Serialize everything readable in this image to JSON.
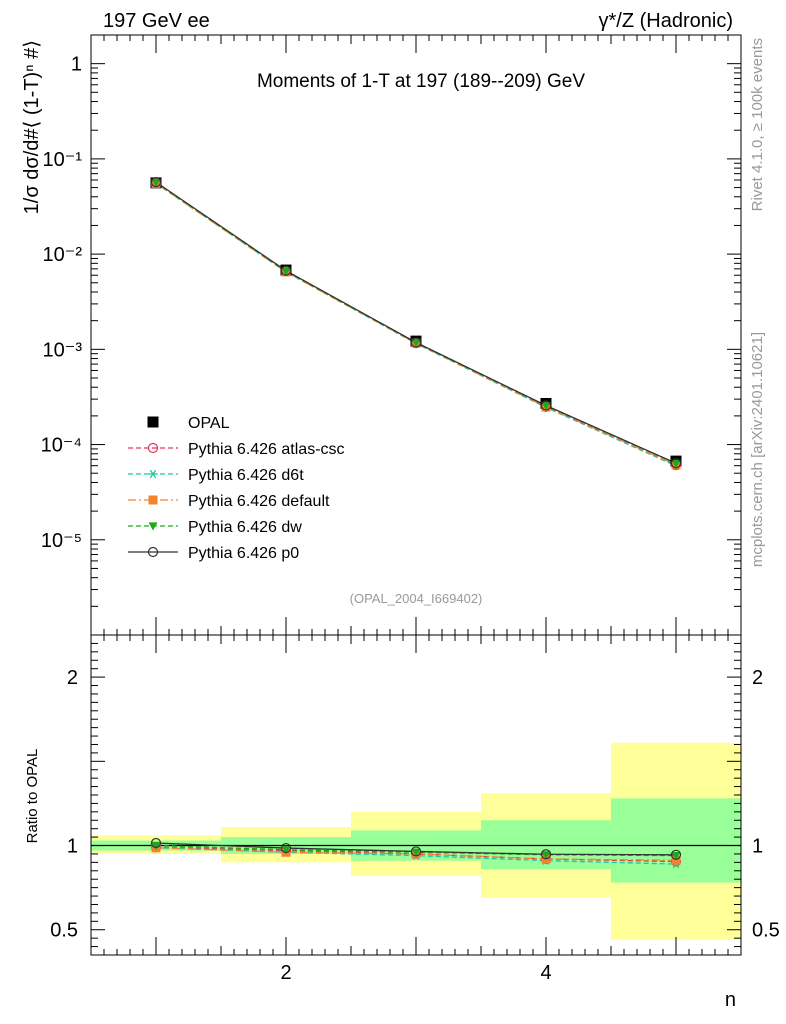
{
  "header": {
    "left": "197 GeV ee",
    "right": "γ*/Z (Hadronic)"
  },
  "side_labels": {
    "rivet": "Rivet 4.1.0, ≥ 100k events",
    "mcplots": "mcplots.cern.ch [arXiv:2401.10621]"
  },
  "chart_data": [
    {
      "panel": "main",
      "type": "line",
      "title": "Moments of 1-T at 197 (189--209) GeV",
      "ylabel": "1/σ  dσ/d#⟨ (1-T)ⁿ #⟩",
      "xlabel": "",
      "yscale": "log",
      "xlim": [
        0.5,
        5.5
      ],
      "ylim": [
        1e-06,
        2
      ],
      "ytick_labels": [
        "1",
        "10⁻¹",
        "10⁻²",
        "10⁻³",
        "10⁻⁴",
        "10⁻⁵"
      ],
      "ytick_values": [
        1,
        0.1,
        0.01,
        0.001,
        0.0001,
        1e-05
      ],
      "annotation": "(OPAL_2004_I669402)",
      "x": [
        1,
        2,
        3,
        4,
        5
      ],
      "reference": {
        "name": "OPAL",
        "values": [
          0.056,
          0.0068,
          0.00122,
          0.00027,
          6.7e-05
        ]
      },
      "series": [
        {
          "name": "Pythia 6.426 atlas-csc",
          "color": "#e8335a",
          "marker": "open-circle",
          "dash": "dashed",
          "values": [
            0.0555,
            0.0066,
            0.00116,
            0.000248,
            6.07e-05
          ]
        },
        {
          "name": "Pythia 6.426 d6t",
          "color": "#22c89c",
          "marker": "asterisk",
          "dash": "dashed",
          "values": [
            0.0553,
            0.0065,
            0.00115,
            0.000245,
            5.96e-05
          ]
        },
        {
          "name": "Pythia 6.426 default",
          "color": "#f58231",
          "marker": "filled-square",
          "dash": "dashdot",
          "values": [
            0.0553,
            0.0065,
            0.00116,
            0.000248,
            6.12e-05
          ]
        },
        {
          "name": "Pythia 6.426 dw",
          "color": "#1aaa1a",
          "marker": "filled-triangle-down",
          "dash": "dashed",
          "values": [
            0.0565,
            0.0066,
            0.00118,
            0.000256,
            6.33e-05
          ]
        },
        {
          "name": "Pythia 6.426 p0",
          "color": "#333333",
          "marker": "open-circle",
          "dash": "solid",
          "values": [
            0.057,
            0.0067,
            0.00118,
            0.000257,
            6.36e-05
          ]
        }
      ]
    },
    {
      "panel": "ratio",
      "type": "line",
      "ylabel": "Ratio to OPAL",
      "xlabel": "n",
      "xlim": [
        0.5,
        5.5
      ],
      "ylim": [
        0.35,
        2.25
      ],
      "ytick_labels": [
        "0.5",
        "1",
        "2"
      ],
      "ytick_values": [
        0.5,
        1,
        2
      ],
      "xtick_labels": [
        "2",
        "4"
      ],
      "xtick_values": [
        2,
        4
      ],
      "bands": [
        {
          "x_lo": 0.5,
          "x_hi": 1.5,
          "green": [
            0.97,
            1.03
          ],
          "yellow": [
            0.95,
            1.06
          ]
        },
        {
          "x_lo": 1.5,
          "x_hi": 2.5,
          "green": [
            0.95,
            1.05
          ],
          "yellow": [
            0.9,
            1.11
          ]
        },
        {
          "x_lo": 2.5,
          "x_hi": 3.5,
          "green": [
            0.91,
            1.09
          ],
          "yellow": [
            0.82,
            1.2
          ]
        },
        {
          "x_lo": 3.5,
          "x_hi": 4.5,
          "green": [
            0.86,
            1.15
          ],
          "yellow": [
            0.69,
            1.31
          ]
        },
        {
          "x_lo": 4.5,
          "x_hi": 5.5,
          "green": [
            0.78,
            1.28
          ],
          "yellow": [
            0.44,
            1.61
          ]
        }
      ],
      "band_colors": {
        "green": "#99ff99",
        "yellow": "#ffff99"
      },
      "series": [
        {
          "name": "Pythia 6.426 atlas-csc",
          "values": [
            0.99,
            0.97,
            0.95,
            0.92,
            0.905
          ]
        },
        {
          "name": "Pythia 6.426 d6t",
          "values": [
            0.987,
            0.96,
            0.94,
            0.91,
            0.89
          ]
        },
        {
          "name": "Pythia 6.426 default",
          "values": [
            0.987,
            0.96,
            0.95,
            0.92,
            0.913
          ]
        },
        {
          "name": "Pythia 6.426 dw",
          "values": [
            1.0,
            0.975,
            0.96,
            0.945,
            0.94
          ]
        },
        {
          "name": "Pythia 6.426 p0",
          "values": [
            1.015,
            0.985,
            0.965,
            0.948,
            0.945
          ]
        }
      ]
    }
  ]
}
